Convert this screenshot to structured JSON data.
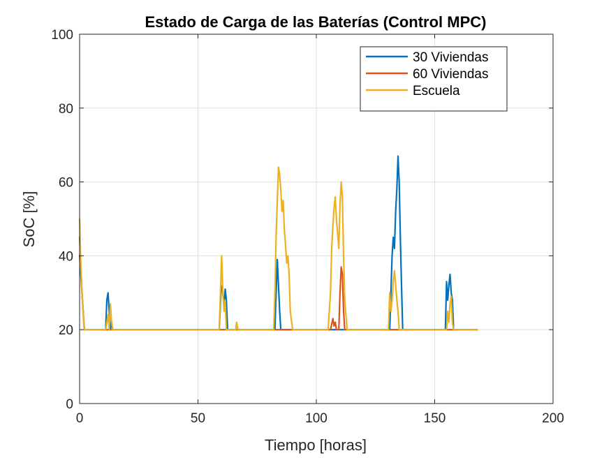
{
  "chart_data": {
    "type": "line",
    "title": "Estado de Carga de las Baterías (Control MPC)",
    "xlabel": "Tiempo [horas]",
    "ylabel": "SoC [%]",
    "xlim": [
      0,
      200
    ],
    "ylim": [
      0,
      100
    ],
    "xticks": [
      0,
      50,
      100,
      150,
      200
    ],
    "yticks": [
      0,
      20,
      40,
      60,
      80,
      100
    ],
    "grid": true,
    "legend_position": "top-right",
    "series": [
      {
        "name": "30 Viviendas",
        "color": "#0072BD",
        "x": [
          0,
          1,
          2,
          11,
          11.5,
          12,
          12.5,
          13,
          13.5,
          14,
          59,
          59.7,
          60.3,
          61,
          61.5,
          62,
          62.5,
          82.5,
          83,
          83.5,
          84,
          84.5,
          85,
          105,
          108,
          110,
          112,
          131,
          131.5,
          132,
          132.5,
          133,
          133.5,
          134,
          134.5,
          135,
          135.5,
          136,
          136.5,
          154.5,
          155,
          155.5,
          156,
          156.5,
          157,
          157.5,
          158,
          168
        ],
        "y": [
          40,
          30,
          20,
          20,
          28,
          30,
          25,
          20,
          22,
          20,
          20,
          30,
          32,
          26,
          31,
          28,
          20,
          20,
          30,
          39,
          32,
          25,
          20,
          20,
          20,
          20,
          20,
          20,
          30,
          40,
          45,
          42,
          52,
          58,
          67,
          60,
          45,
          32,
          20,
          20,
          33,
          28,
          32,
          35,
          30,
          28,
          20,
          20
        ]
      },
      {
        "name": "60 Viviendas",
        "color": "#D95319",
        "x": [
          0,
          1,
          2,
          12,
          60,
          82.5,
          86,
          106,
          107,
          107.5,
          108,
          108.5,
          109,
          109.5,
          110,
          110.5,
          111,
          111.5,
          112,
          113,
          132,
          136,
          156,
          168
        ],
        "y": [
          45,
          30,
          20,
          20,
          20,
          20,
          20,
          20,
          23,
          21,
          22,
          20,
          20,
          20,
          30,
          37,
          35,
          25,
          20,
          20,
          20,
          20,
          20,
          20
        ]
      },
      {
        "name": "Escuela",
        "color": "#EDB120",
        "x": [
          0,
          0.5,
          1,
          1.5,
          2,
          11,
          11.5,
          12,
          12.5,
          13,
          13.5,
          14,
          59,
          59.5,
          60,
          60.5,
          61,
          61.5,
          62,
          62.5,
          66,
          66.3,
          66.6,
          67,
          82,
          82.5,
          83,
          83.5,
          84,
          84.5,
          85,
          85.5,
          86,
          86.5,
          87,
          87.5,
          88,
          88.5,
          89,
          90,
          105,
          106,
          106.5,
          107,
          107.5,
          108,
          108.5,
          109,
          109.5,
          110,
          110.5,
          111,
          111.5,
          112,
          113,
          130.5,
          131,
          131.5,
          132,
          132.5,
          133,
          133.5,
          134,
          134.5,
          135,
          155,
          155.5,
          156,
          156.5,
          157,
          157.5,
          158,
          168
        ],
        "y": [
          50,
          38,
          30,
          25,
          20,
          20,
          22,
          24,
          20,
          27,
          22,
          20,
          20,
          30,
          40,
          30,
          25,
          28,
          20,
          20,
          20,
          22,
          21,
          20,
          20,
          30,
          45,
          55,
          64,
          62,
          58,
          52,
          55,
          47,
          43,
          38,
          40,
          35,
          25,
          20,
          20,
          30,
          42,
          48,
          53,
          56,
          50,
          46,
          42,
          54,
          60,
          56,
          40,
          28,
          20,
          20,
          30,
          25,
          28,
          33,
          36,
          32,
          28,
          25,
          20,
          20,
          25,
          22,
          27,
          29,
          22,
          20,
          20
        ]
      }
    ]
  }
}
